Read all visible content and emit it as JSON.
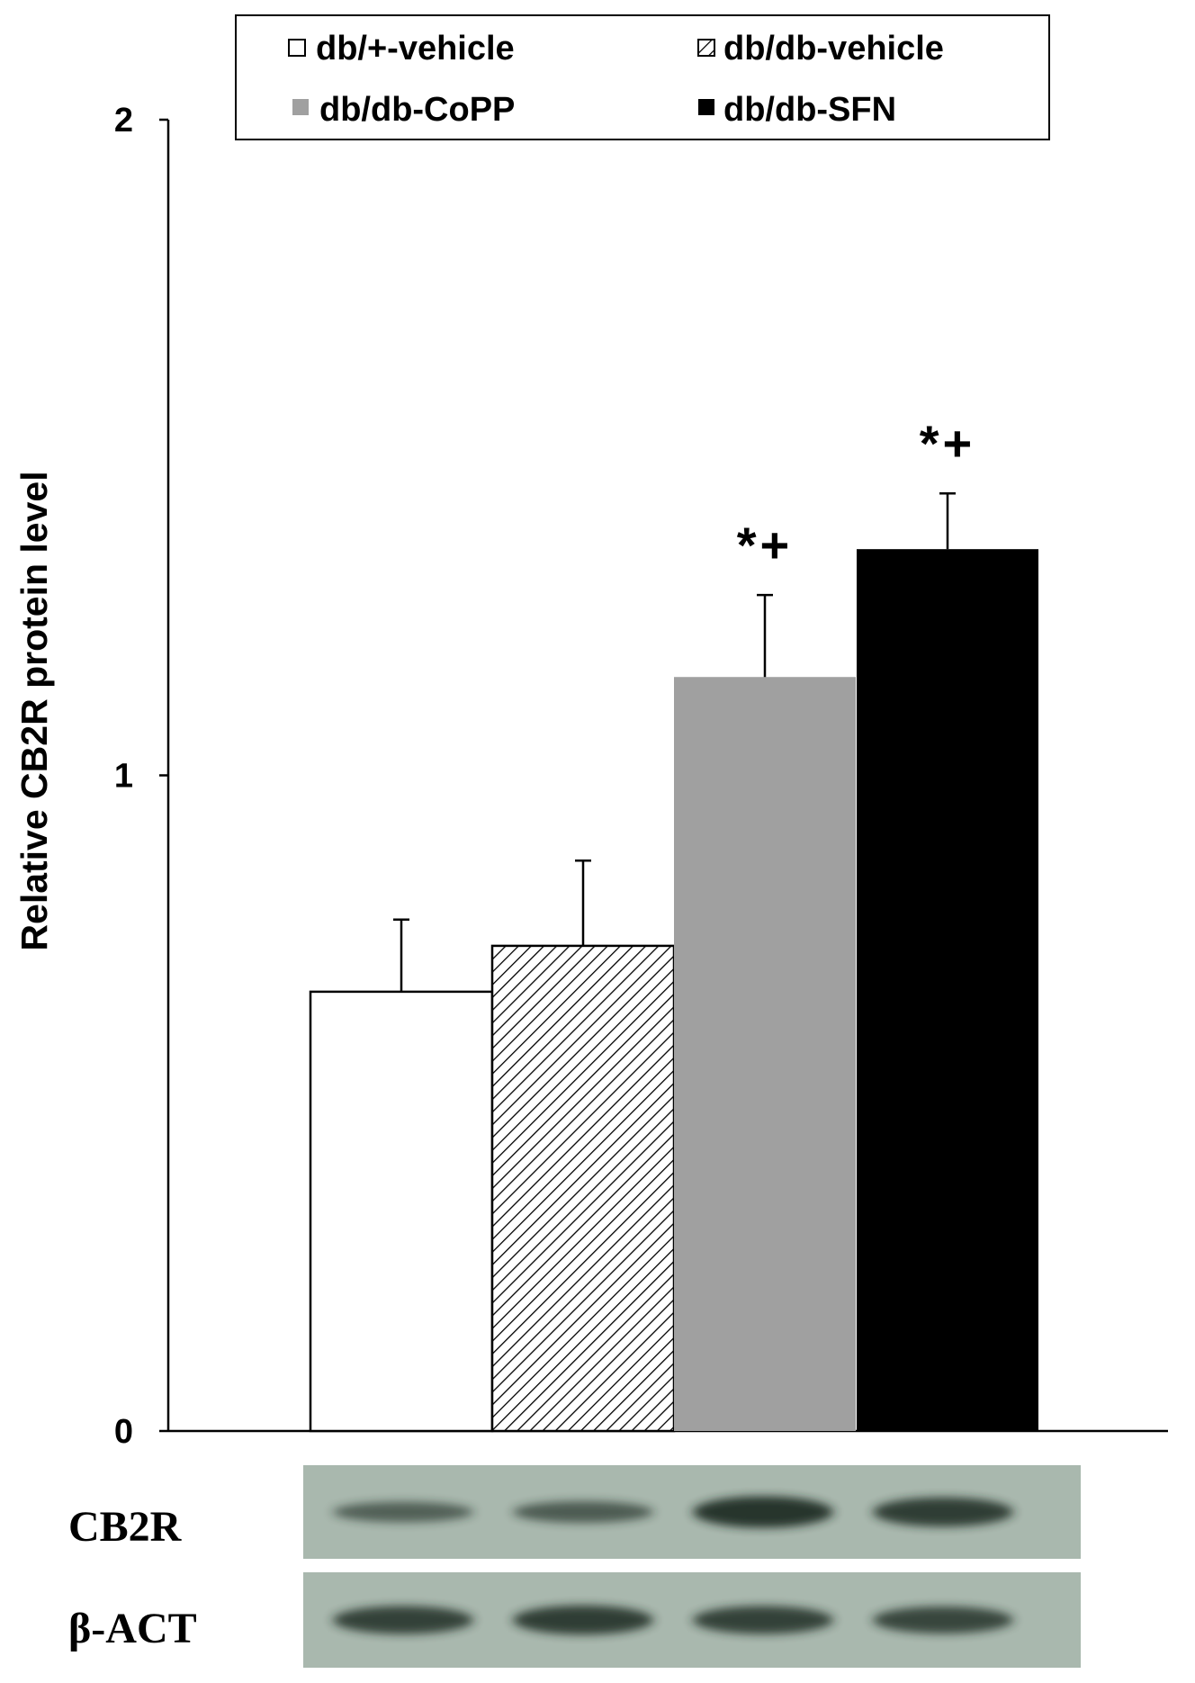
{
  "chart_data": {
    "type": "bar",
    "ylabel": "Relative CB2R protein level",
    "xlabel": "",
    "ylim": [
      0,
      2
    ],
    "yticks": [
      "0",
      "1",
      "2"
    ],
    "ytick_values": [
      0,
      1,
      2
    ],
    "grid": false,
    "legend_position": "top",
    "series": [
      {
        "name": "db/+-vehicle",
        "value": 0.67,
        "error": 0.11,
        "fill": "white",
        "annotation": ""
      },
      {
        "name": "db/db-vehicle",
        "value": 0.74,
        "error": 0.13,
        "fill": "hatched",
        "annotation": ""
      },
      {
        "name": "db/db-CoPP",
        "value": 1.15,
        "error": 0.125,
        "fill": "#a0a0a0",
        "annotation": "*+"
      },
      {
        "name": "db/db-SFN",
        "value": 1.345,
        "error": 0.085,
        "fill": "#000000",
        "annotation": "*+"
      }
    ]
  },
  "blot": {
    "rows": [
      {
        "label": "CB2R",
        "band_intensity": [
          0.45,
          0.5,
          0.95,
          0.85
        ]
      },
      {
        "label": "β-ACT",
        "band_intensity": [
          0.8,
          0.85,
          0.8,
          0.75
        ]
      }
    ]
  },
  "colors": {
    "axis": "#000000",
    "blot_bg": "#a9b8ae",
    "band": "#1c2a24",
    "gray_bar": "#a0a0a0"
  }
}
